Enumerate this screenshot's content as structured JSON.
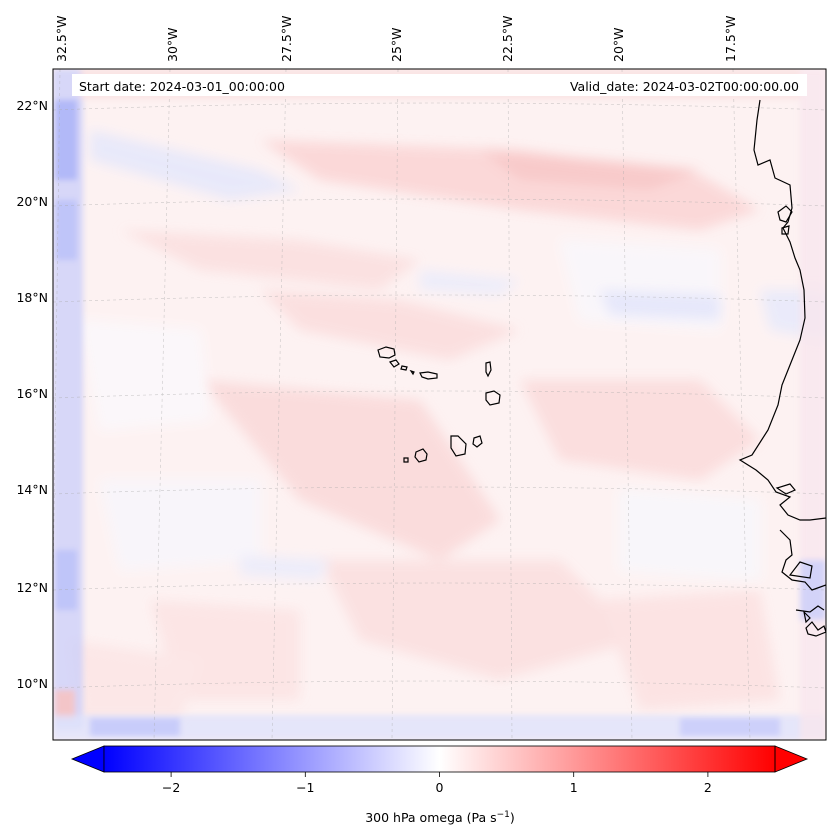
{
  "map": {
    "start_date": "Start date: 2024-03-01_00:00:00",
    "valid_date": "Valid_date: 2024-03-02T00:00:00.00",
    "longitude_labels": [
      "32.5°W",
      "30°W",
      "27.5°W",
      "25°W",
      "22.5°W",
      "20°W",
      "17.5°W"
    ],
    "latitude_labels": [
      "22°N",
      "20°N",
      "18°N",
      "16°N",
      "14°N",
      "12°N",
      "10°N"
    ],
    "features": [
      "Cape Verde islands",
      "West African coastline"
    ]
  },
  "colorbar": {
    "label_prefix": "300 hPa omega (Pa s",
    "label_exp": "−1",
    "label_suffix": ")",
    "ticks": [
      "−2",
      "−1",
      "0",
      "1",
      "2"
    ],
    "tick_values": [
      -2,
      -1,
      0,
      1,
      2
    ],
    "range": [
      -2.5,
      2.5
    ],
    "colors": {
      "low": "#0000ff",
      "mid": "#ffffff",
      "high": "#ff0000"
    }
  }
}
